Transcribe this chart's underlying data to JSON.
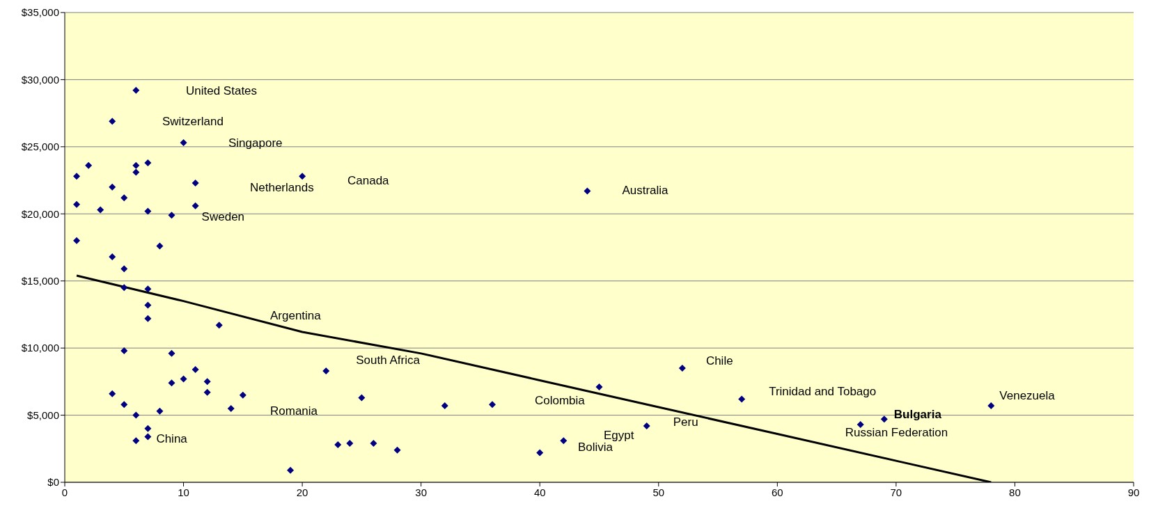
{
  "chart_data": {
    "type": "scatter",
    "grid": "y",
    "xlim": [
      0,
      90
    ],
    "xticks": [
      0,
      10,
      20,
      30,
      40,
      50,
      60,
      70,
      80,
      90
    ],
    "ylim": [
      0,
      35000
    ],
    "yticks": [
      {
        "value": 0,
        "label": "$0"
      },
      {
        "value": 5000,
        "label": "$5,000"
      },
      {
        "value": 10000,
        "label": "$10,000"
      },
      {
        "value": 15000,
        "label": "$15,000"
      },
      {
        "value": 20000,
        "label": "$20,000"
      },
      {
        "value": 25000,
        "label": "$25,000"
      },
      {
        "value": 30000,
        "label": "$30,000"
      },
      {
        "value": 35000,
        "label": "$35,000"
      }
    ],
    "series": [
      {
        "marker": "diamond",
        "color": "#000080",
        "x": [
          1,
          1,
          1,
          2,
          3,
          4,
          4,
          4,
          4,
          5,
          5,
          5,
          5,
          5,
          6,
          6,
          6,
          6,
          6,
          7,
          7,
          7,
          7,
          7,
          7,
          7,
          8,
          8,
          9,
          9,
          9,
          10,
          10,
          11,
          11,
          11,
          12,
          12,
          13,
          14,
          15,
          19,
          20,
          22,
          23,
          24,
          25,
          26,
          28,
          32,
          36,
          40,
          42,
          44,
          45,
          49,
          52,
          57,
          67,
          69,
          78
        ],
        "values": [
          22800,
          20700,
          18000,
          23600,
          20300,
          26900,
          22000,
          16800,
          6600,
          21200,
          15900,
          14500,
          9800,
          5800,
          29200,
          23600,
          23100,
          5000,
          3100,
          23800,
          20200,
          14400,
          13200,
          12200,
          4000,
          3400,
          17600,
          5300,
          19900,
          9600,
          7400,
          25300,
          7700,
          22300,
          20600,
          8400,
          7500,
          6700,
          11700,
          5500,
          6500,
          900,
          22800,
          8300,
          2800,
          2900,
          6300,
          2900,
          2400,
          5700,
          5800,
          2200,
          3100,
          21700,
          7100,
          4200,
          8500,
          6200,
          4300,
          4700,
          5700
        ]
      },
      {
        "type": "line",
        "color": "#000000",
        "x": [
          1,
          10,
          20,
          30,
          40,
          50,
          60,
          70,
          78
        ],
        "values": [
          15400,
          13500,
          11200,
          9600,
          7600,
          5600,
          3600,
          1600,
          0
        ]
      }
    ],
    "annotations": [
      "United States",
      "Switzerland",
      "Singapore",
      "Netherlands",
      "Canada",
      {
        "text": "Australia",
        "x": 44,
        "y": 21700
      },
      {
        "text": "Sweden",
        "x": 11,
        "y": 20600
      },
      "Argentina",
      {
        "text": "South Africa",
        "x": 22,
        "y": 8300
      },
      {
        "text": "Chile",
        "x": 52,
        "y": 8500
      },
      {
        "text": "Trinidad and Tobago",
        "x": 57,
        "y": 6200
      },
      {
        "text": "Venezuela",
        "x": 78,
        "y": 5700
      },
      {
        "text": "Bulgaria",
        "x": 69,
        "y": 4700
      },
      {
        "text": "Russian Federation",
        "x": 67,
        "y": 4300
      },
      "Colombia",
      {
        "text": "Peru",
        "x": 49,
        "y": 4200
      },
      "Egypt",
      "Bolivia",
      "Romania",
      {
        "text": "China",
        "x": 7,
        "y": 3400
      }
    ]
  }
}
